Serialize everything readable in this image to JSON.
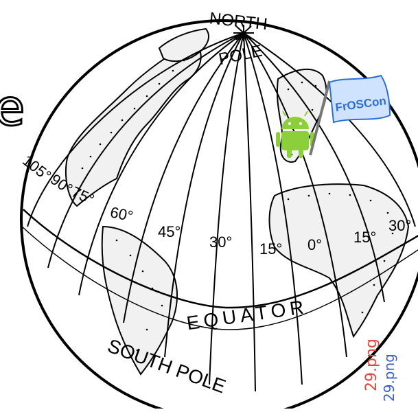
{
  "map": {
    "labels": {
      "north": "NORTH",
      "pole": "POLE",
      "equator": "EQUATOR",
      "south_pole": "SOUTH POLE"
    },
    "meridians": [
      "105°",
      "90°",
      "75°",
      "60°",
      "45°",
      "30°",
      "15°",
      "0°",
      "15°",
      "30°"
    ],
    "flag_text": "FrOSCon",
    "partial_text": "e",
    "filename_1": "29.png",
    "filename_2": "29.png"
  },
  "colors": {
    "ink": "#000000",
    "flag_blue": "#2a6fd6",
    "flag_bg": "#cfe3ff",
    "android_green": "#8ccf3a",
    "filename_red": "#e0483b",
    "filename_blue": "#3a5fc8"
  }
}
